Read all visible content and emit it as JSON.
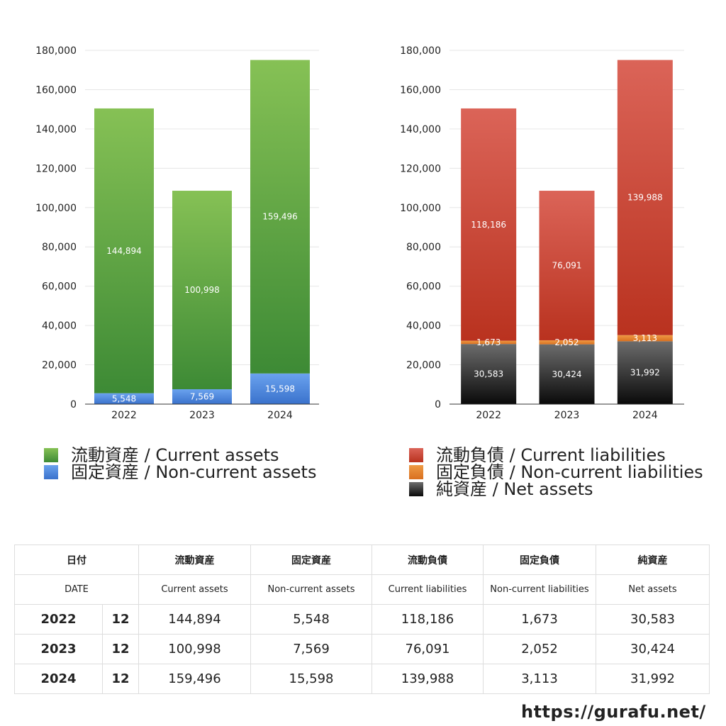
{
  "chart_data": [
    {
      "type": "bar",
      "stacked": true,
      "categories": [
        "2022",
        "2023",
        "2024"
      ],
      "ylim": [
        0,
        180000
      ],
      "yticks": [
        0,
        20000,
        40000,
        60000,
        80000,
        100000,
        120000,
        140000,
        160000,
        180000
      ],
      "grid": true,
      "legend_position": "bottom",
      "series": [
        {
          "name": "固定資産 / Non-current assets",
          "values": [
            5548,
            7569,
            15598
          ],
          "color": "#4a86d8"
        },
        {
          "name": "流動資産 / Current assets",
          "values": [
            144894,
            100998,
            159496
          ],
          "color": "#5ea84a"
        }
      ]
    },
    {
      "type": "bar",
      "stacked": true,
      "categories": [
        "2022",
        "2023",
        "2024"
      ],
      "ylim": [
        0,
        180000
      ],
      "yticks": [
        0,
        20000,
        40000,
        60000,
        80000,
        100000,
        120000,
        140000,
        160000,
        180000
      ],
      "grid": true,
      "legend_position": "bottom",
      "series": [
        {
          "name": "純資産 / Net assets",
          "values": [
            30583,
            30424,
            31992
          ],
          "color": "#3a3a3a"
        },
        {
          "name": "固定負債 / Non-current liabilities",
          "values": [
            1673,
            2052,
            3113
          ],
          "color": "#e07b2a"
        },
        {
          "name": "流動負債 / Current liabilities",
          "values": [
            118186,
            76091,
            139988
          ],
          "color": "#cf4a3a"
        }
      ]
    }
  ],
  "legends": {
    "assets": [
      {
        "label": "流動資産 / Current assets",
        "color": "#5ea84a"
      },
      {
        "label": "固定資産 / Non-current assets",
        "color": "#4a86d8"
      }
    ],
    "liabilities": [
      {
        "label": "流動負債 / Current liabilities",
        "color": "#cf4a3a"
      },
      {
        "label": "固定負債 / Non-current liabilities",
        "color": "#e07b2a"
      },
      {
        "label": "純資産 / Net assets",
        "color": "#1a1a1a"
      }
    ]
  },
  "table": {
    "header_jp": {
      "date": "日付",
      "current_assets": "流動資産",
      "noncurrent_assets": "固定資産",
      "current_liabilities": "流動負債",
      "noncurrent_liabilities": "固定負債",
      "net_assets": "純資産"
    },
    "header_en": {
      "date": "DATE",
      "current_assets": "Current assets",
      "noncurrent_assets": "Non-current assets",
      "current_liabilities": "Current liabilities",
      "noncurrent_liabilities": "Non-current liabilities",
      "net_assets": "Net assets"
    },
    "rows": [
      {
        "year": "2022",
        "month": "12",
        "current_assets": "144,894",
        "noncurrent_assets": "5,548",
        "current_liabilities": "118,186",
        "noncurrent_liabilities": "1,673",
        "net_assets": "30,583"
      },
      {
        "year": "2023",
        "month": "12",
        "current_assets": "100,998",
        "noncurrent_assets": "7,569",
        "current_liabilities": "76,091",
        "noncurrent_liabilities": "2,052",
        "net_assets": "30,424"
      },
      {
        "year": "2024",
        "month": "12",
        "current_assets": "159,496",
        "noncurrent_assets": "15,598",
        "current_liabilities": "139,988",
        "noncurrent_liabilities": "3,113",
        "net_assets": "31,992"
      }
    ]
  },
  "site_url": "https://gurafu.net/"
}
